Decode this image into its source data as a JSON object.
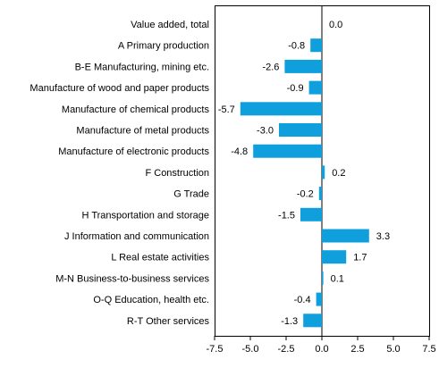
{
  "chart_data": {
    "type": "bar",
    "orientation": "horizontal",
    "title": "",
    "xlabel": "",
    "ylabel": "",
    "categories": [
      "Value added, total",
      "A Primary production",
      "B-E Manufacturing, mining etc.",
      "Manufacture of wood and paper products",
      "Manufacture of chemical products",
      "Manufacture of metal products",
      "Manufacture of electronic products",
      "F Construction",
      "G Trade",
      "H Transportation and storage",
      "J Information and communication",
      "L Real estate activities",
      "M-N Business-to-business services",
      "O-Q Education, health etc.",
      "R-T Other services"
    ],
    "values": [
      0.0,
      -0.8,
      -2.6,
      -0.9,
      -5.7,
      -3.0,
      -4.8,
      0.2,
      -0.2,
      -1.5,
      3.3,
      1.7,
      0.1,
      -0.4,
      -1.3
    ],
    "value_labels": [
      "0.0",
      "-0.8",
      "-2.6",
      "-0.9",
      "-5.7",
      "-3.0",
      "-4.8",
      "0.2",
      "-0.2",
      "-1.5",
      "3.3",
      "1.7",
      "0.1",
      "-0.4",
      "-1.3"
    ],
    "xlim": [
      -7.5,
      7.5
    ],
    "xticks": [
      -7.5,
      -5.0,
      -2.5,
      0.0,
      2.5,
      5.0,
      7.5
    ],
    "xtick_labels": [
      "-7.5",
      "-5.0",
      "-2.5",
      "0.0",
      "2.5",
      "5.0",
      "7.5"
    ],
    "grid": false,
    "legend": "none",
    "bar_color": "#0e9fdc"
  }
}
